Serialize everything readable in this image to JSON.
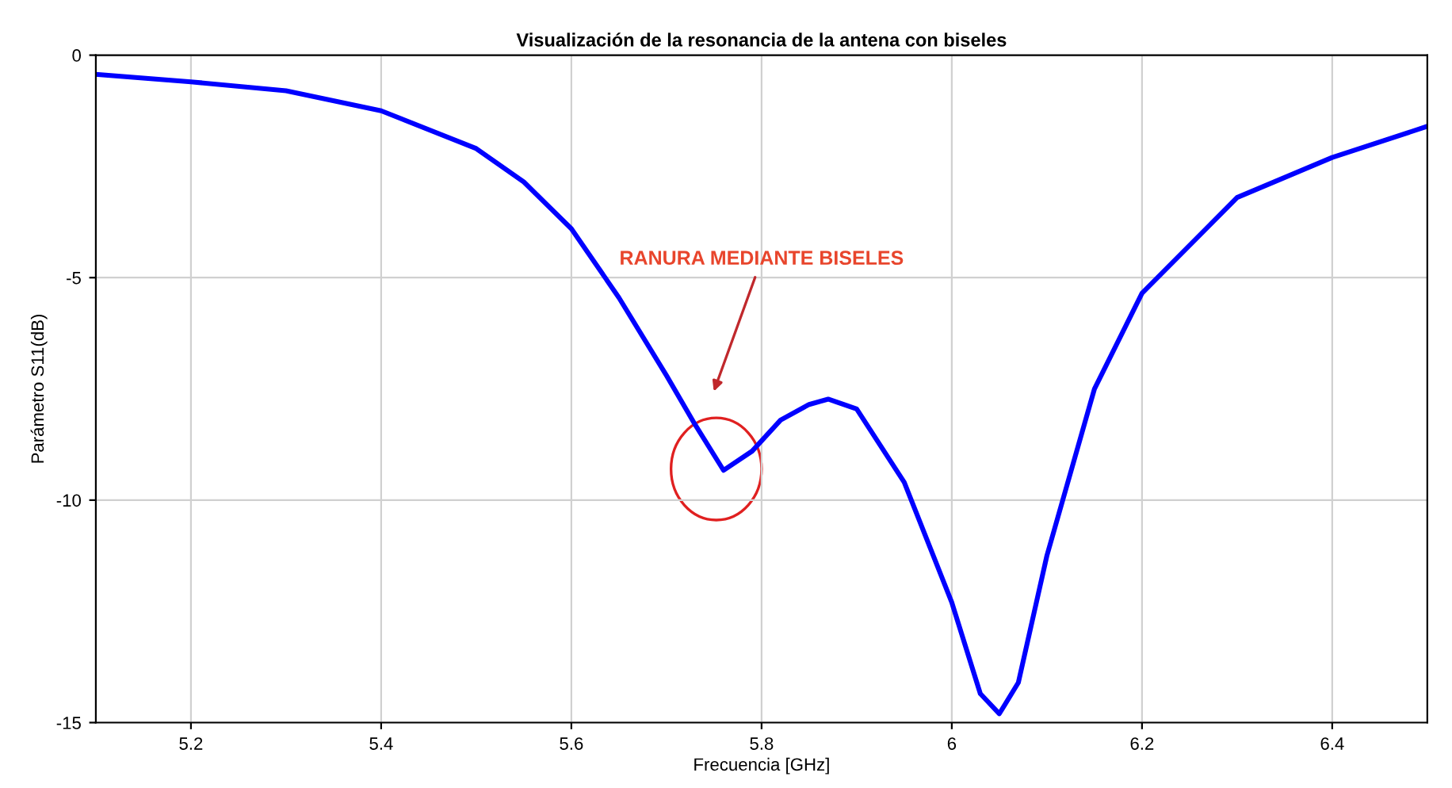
{
  "chart_data": {
    "type": "line",
    "title": "Visualización de la resonancia de la antena con biseles",
    "xlabel": "Frecuencia [GHz]",
    "ylabel": "Parámetro S11(dB)",
    "series": [
      {
        "color": "#0000ff",
        "x": [
          5.1,
          5.2,
          5.3,
          5.4,
          5.5,
          5.55,
          5.6,
          5.65,
          5.7,
          5.73,
          5.76,
          5.79,
          5.82,
          5.85,
          5.87,
          5.9,
          5.95,
          6.0,
          6.03,
          6.05,
          6.07,
          6.1,
          6.15,
          6.2,
          6.3,
          6.4,
          6.5
        ],
        "values": [
          -0.43,
          -0.6,
          -0.8,
          -1.25,
          -2.1,
          -2.85,
          -3.9,
          -5.45,
          -7.2,
          -8.3,
          -9.33,
          -8.9,
          -8.2,
          -7.85,
          -7.73,
          -7.95,
          -9.6,
          -12.3,
          -14.35,
          -14.8,
          -14.1,
          -11.25,
          -7.5,
          -5.35,
          -3.2,
          -2.3,
          -1.6
        ]
      }
    ],
    "xlim": [
      5.1,
      6.5
    ],
    "xticks": [
      5.2,
      5.4,
      5.6,
      5.8,
      6,
      6.2,
      6.4
    ],
    "ylim": [
      -15,
      0
    ],
    "yticks": [
      -15,
      -10,
      -5,
      0
    ],
    "grid": true,
    "marker": "none",
    "line_style": "solid",
    "annotations": [
      "RANURA MEDIANTE BISELES"
    ]
  }
}
